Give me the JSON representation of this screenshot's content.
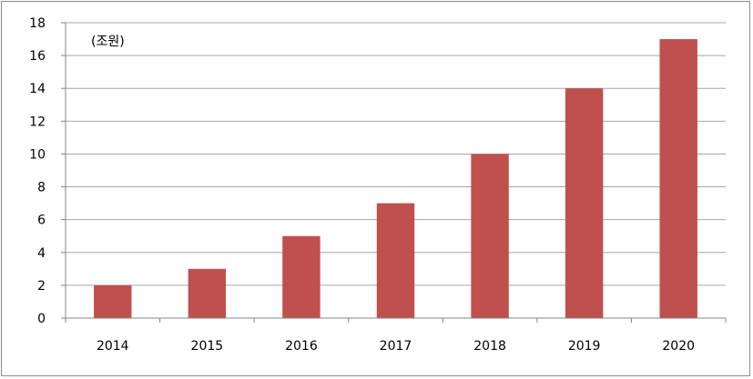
{
  "chart_data": {
    "type": "bar",
    "categories": [
      "2014",
      "2015",
      "2016",
      "2017",
      "2018",
      "2019",
      "2020"
    ],
    "values": [
      2,
      3,
      5,
      7,
      10,
      14,
      17
    ],
    "unit_label": "(조원)",
    "ylim": [
      0,
      18
    ],
    "yticks": [
      "0",
      "2",
      "4",
      "6",
      "8",
      "10",
      "12",
      "14",
      "16",
      "18"
    ],
    "grid": true,
    "legend": "none",
    "bar_color": "#c0504d",
    "grid_color": "#a6a6a6",
    "axis_color": "#868686"
  }
}
